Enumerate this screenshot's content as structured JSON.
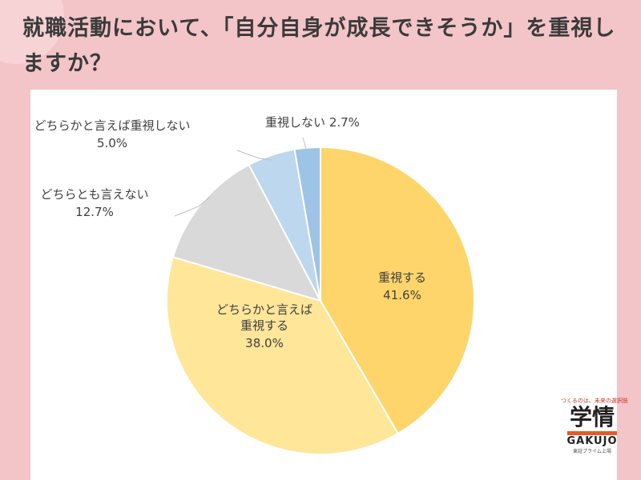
{
  "title": "就職活動において、「自分自身が成長できそうか」を重視しますか？",
  "chart_data": {
    "type": "pie",
    "title": "就職活動において、「自分自身が成長できそうか」を重視しますか？",
    "slices": [
      {
        "label": "重視する",
        "value": 41.6,
        "value_text": "41.6%",
        "color": "#fdd56a"
      },
      {
        "label": "どちらかと言えば重視する",
        "value": 38.0,
        "value_text": "38.0%",
        "color": "#ffe699"
      },
      {
        "label": "どちらとも言えない",
        "value": 12.7,
        "value_text": "12.7%",
        "color": "#d9d9d9"
      },
      {
        "label": "どちらかと言えば重視しない",
        "value": 5.0,
        "value_text": "5.0%",
        "color": "#bdd7ee"
      },
      {
        "label": "重視しない",
        "value": 2.7,
        "value_text": "2.7%",
        "color": "#9dc3e6"
      }
    ],
    "start_angle": "12 o'clock",
    "direction": "clockwise"
  },
  "logo": {
    "tagline": "つくるのは、未来の選択肢",
    "kanji": "学情",
    "name": "GAKUJO",
    "sub": "東証プライム上場"
  }
}
